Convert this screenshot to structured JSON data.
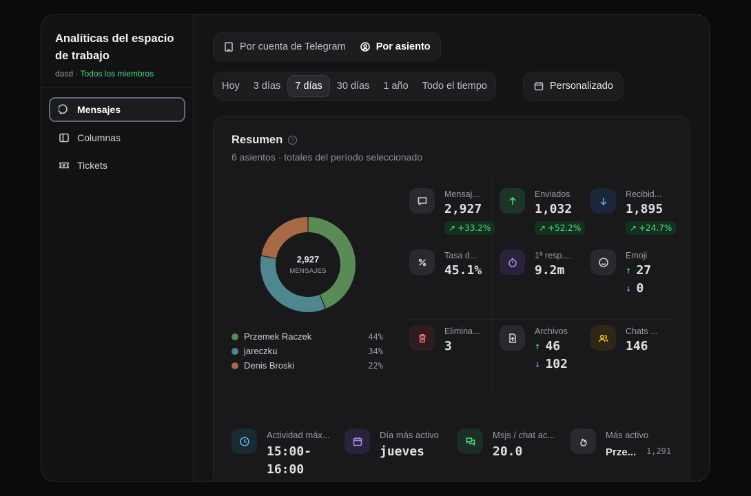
{
  "sidebar": {
    "title_line1": "Analíticas del espacio",
    "title_line2": "de trabajo",
    "workspace": "dasd",
    "separator": " · ",
    "scope": "Todos los miembros",
    "items": [
      {
        "label": "Mensajes",
        "icon": "message-icon",
        "active": true
      },
      {
        "label": "Columnas",
        "icon": "columns-icon",
        "active": false
      },
      {
        "label": "Tickets",
        "icon": "ticket-icon",
        "active": false
      }
    ]
  },
  "view_toggle": {
    "by_account": "Por cuenta de Telegram",
    "by_seat": "Por asiento"
  },
  "range": {
    "options": [
      "Hoy",
      "3 días",
      "7 días",
      "30 días",
      "1 año",
      "Todo el tiempo"
    ],
    "selected": "7 días",
    "custom": "Personalizado"
  },
  "summary": {
    "title": "Resumen",
    "help": "?",
    "subtitle": "6 asientos · totales del período seleccionado",
    "donut": {
      "total": "2,927",
      "label": "MENSAJES"
    },
    "legend": [
      {
        "name": "Przemek Raczek",
        "pct": "44%",
        "value": 44,
        "color": "#5a8a55"
      },
      {
        "name": "jareczku",
        "pct": "34%",
        "value": 34,
        "color": "#4f8790"
      },
      {
        "name": "Denis Broski",
        "pct": "22%",
        "value": 22,
        "color": "#a86a45"
      }
    ],
    "stats": {
      "messages": {
        "label": "Mensaj...",
        "value": "2,927",
        "delta": "+33.2%"
      },
      "sent": {
        "label": "Enviados",
        "value": "1,032",
        "delta": "+52.2%"
      },
      "received": {
        "label": "Recibid...",
        "value": "1,895",
        "delta": "+24.7%"
      },
      "rate": {
        "label": "Tasa d...",
        "value": "45.1%"
      },
      "first_response": {
        "label": "1ª resp....",
        "value": "9.2m"
      },
      "emoji": {
        "label": "Emoji",
        "up": "27",
        "down": "0"
      },
      "deleted": {
        "label": "Elimina...",
        "value": "3"
      },
      "files": {
        "label": "Archivos",
        "up": "46",
        "down": "102"
      },
      "chats": {
        "label": "Chats ...",
        "value": "146"
      }
    },
    "bottom": {
      "peak": {
        "label": "Actividad máx...",
        "value_line1": "15:00-",
        "value_line2": "16:00"
      },
      "busiest_day": {
        "label": "Día más activo",
        "value": "jueves"
      },
      "per_chat": {
        "label": "Msjs / chat ac...",
        "value": "20.0"
      },
      "most_active": {
        "label": "Más activo",
        "value": "Prze...",
        "count": "1,291"
      }
    }
  },
  "colors": {
    "accent_green": "#4ade80",
    "accent_blue": "#60a5fa",
    "active_border": "#5b6a80"
  }
}
